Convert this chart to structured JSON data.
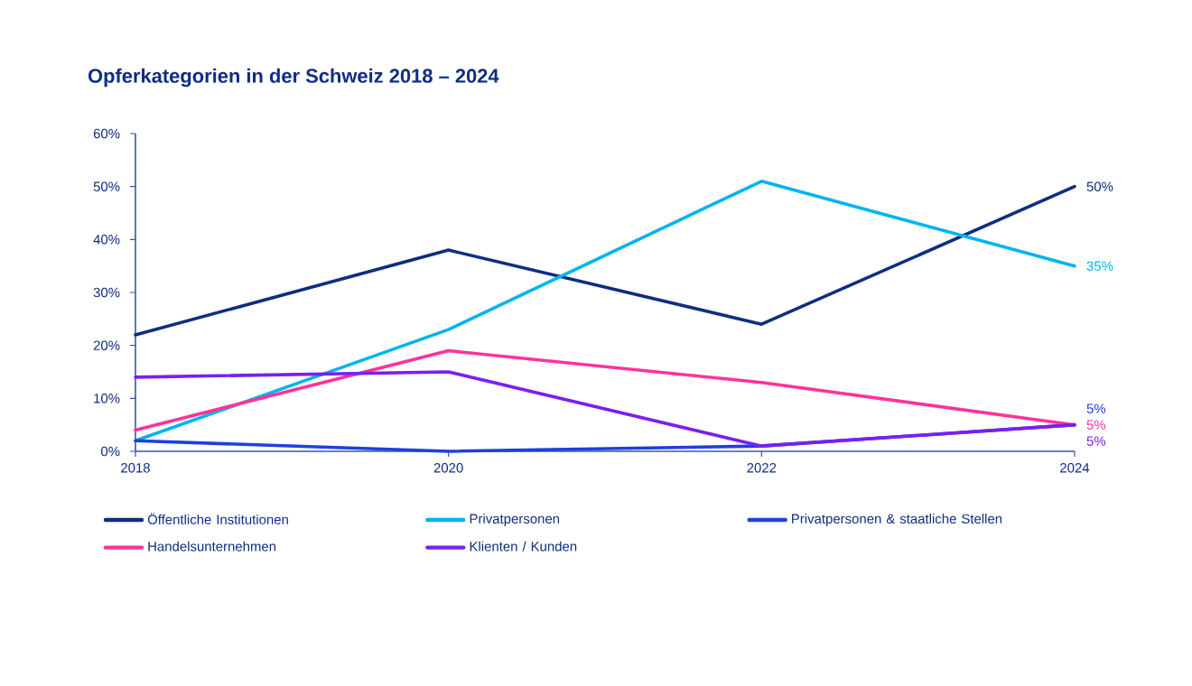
{
  "chart_data": {
    "type": "line",
    "title": "Opferkategorien in der Schweiz 2018 – 2024",
    "x": [
      2018,
      2020,
      2022,
      2024
    ],
    "xlim": [
      2018,
      2024
    ],
    "xticks": [
      2018,
      2020,
      2022,
      2024
    ],
    "ylim": [
      0,
      60
    ],
    "yticks": [
      {
        "value": 0,
        "label": "0%"
      },
      {
        "value": 10,
        "label": "10%"
      },
      {
        "value": 20,
        "label": "20%"
      },
      {
        "value": 30,
        "label": "30%"
      },
      {
        "value": 40,
        "label": "40%"
      },
      {
        "value": 50,
        "label": "50%"
      },
      {
        "value": 60,
        "label": "60%"
      }
    ],
    "grid": false,
    "legend": "bottom",
    "marker": "none",
    "line_style": "solid",
    "series": [
      {
        "name": "Öffentliche Institutionen",
        "color": "#0f2d82",
        "values": [
          22,
          38,
          24,
          50
        ],
        "value_labels": [
          null,
          null,
          null,
          "50%"
        ]
      },
      {
        "name": "Privatpersonen",
        "color": "#00b4f0",
        "values": [
          2,
          23,
          51,
          35
        ],
        "value_labels": [
          null,
          null,
          null,
          "35%"
        ]
      },
      {
        "name": "Privatpersonen & staatliche Stellen",
        "color": "#1f3fe0",
        "values": [
          2,
          0,
          1,
          5
        ],
        "value_labels": [
          null,
          null,
          null,
          "5%"
        ]
      },
      {
        "name": "Handelsunternehmen",
        "color": "#ff3399",
        "values": [
          4,
          19,
          13,
          5
        ],
        "value_labels": [
          null,
          null,
          null,
          "5%"
        ]
      },
      {
        "name": "Klienten / Kunden",
        "color": "#7a1ff0",
        "values": [
          14,
          15,
          1,
          5
        ],
        "value_labels": [
          null,
          null,
          null,
          "5%"
        ]
      }
    ]
  }
}
